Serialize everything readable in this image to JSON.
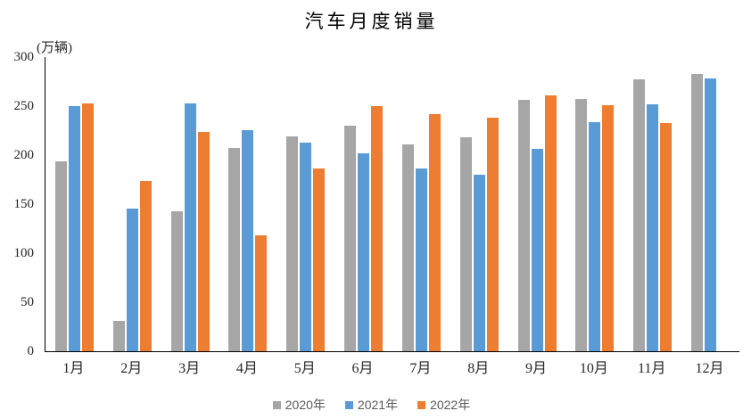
{
  "chart_data": {
    "type": "bar",
    "title": "汽车月度销量",
    "ylabel": "(万辆)",
    "xlabel": "",
    "categories": [
      "1月",
      "2月",
      "3月",
      "4月",
      "5月",
      "6月",
      "7月",
      "8月",
      "9月",
      "10月",
      "11月",
      "12月"
    ],
    "series": [
      {
        "name": "2020年",
        "color": "#A6A6A6",
        "values": [
          194.1,
          31.0,
          143.0,
          207.0,
          219.4,
          230.0,
          211.2,
          218.6,
          256.5,
          257.3,
          277.0,
          283.1
        ]
      },
      {
        "name": "2021年",
        "color": "#5B9BD5",
        "values": [
          250.3,
          145.5,
          252.6,
          225.2,
          212.8,
          201.5,
          186.4,
          179.9,
          206.7,
          233.3,
          252.2,
          278.6
        ]
      },
      {
        "name": "2022年",
        "color": "#ED7D31",
        "values": [
          253.1,
          173.7,
          223.4,
          118.1,
          186.2,
          250.2,
          242.0,
          238.3,
          261.0,
          250.5,
          232.8,
          null
        ]
      }
    ],
    "ylim": [
      0,
      300
    ],
    "yticks": [
      0,
      50,
      100,
      150,
      200,
      250,
      300
    ],
    "grid": false,
    "legend_position": "bottom",
    "axis_color": "#000000",
    "tick_label_color": "#262626",
    "legend_text_color": "#595959",
    "background_color": "#FFFFFF"
  }
}
